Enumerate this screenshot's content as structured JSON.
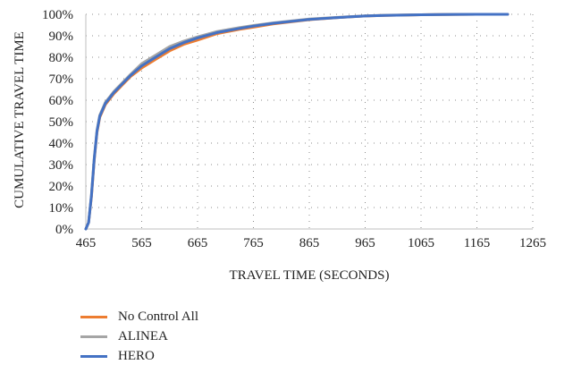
{
  "chart_data": {
    "type": "line",
    "title": "",
    "xlabel": "TRAVEL TIME (SECONDS)",
    "ylabel": "CUMULATIVE TRAVEL TIME",
    "xlim": [
      465,
      1265
    ],
    "ylim": [
      0,
      100
    ],
    "x_ticks": [
      "465",
      "565",
      "665",
      "765",
      "865",
      "965",
      "1065",
      "1165",
      "1265"
    ],
    "y_ticks": [
      "0%",
      "10%",
      "20%",
      "30%",
      "40%",
      "50%",
      "60%",
      "70%",
      "80%",
      "90%",
      "100%"
    ],
    "grid": "dotted",
    "legend_position": "bottom-left",
    "series": [
      {
        "name": "No Control All",
        "color": "#ED7D31",
        "x": [
          465,
          470,
          475,
          480,
          485,
          490,
          500,
          515,
          530,
          545,
          565,
          590,
          615,
          640,
          665,
          700,
          740,
          765,
          800,
          865,
          930,
          965,
          1000,
          1065,
          1100,
          1165,
          1220
        ],
        "y": [
          0,
          3,
          15,
          32,
          45,
          52,
          58,
          63,
          67,
          71,
          75,
          79,
          83,
          86,
          88,
          91,
          93,
          94,
          95.5,
          97.5,
          98.7,
          99.2,
          99.5,
          99.8,
          99.9,
          100,
          100
        ]
      },
      {
        "name": "ALINEA",
        "color": "#A5A5A5",
        "x": [
          465,
          470,
          475,
          480,
          485,
          490,
          500,
          515,
          530,
          545,
          565,
          590,
          615,
          640,
          665,
          700,
          740,
          765,
          800,
          865,
          930,
          965,
          1000,
          1065,
          1100,
          1165,
          1220
        ],
        "y": [
          0,
          3,
          16,
          33,
          46,
          53,
          59,
          64,
          68,
          72,
          77,
          81,
          85,
          87.5,
          89.5,
          92,
          93.8,
          94.8,
          96,
          97.8,
          98.8,
          99.3,
          99.6,
          99.8,
          99.9,
          100,
          100
        ]
      },
      {
        "name": "HERO",
        "color": "#4472C4",
        "x": [
          465,
          470,
          475,
          480,
          485,
          490,
          500,
          515,
          530,
          545,
          565,
          590,
          615,
          640,
          665,
          700,
          740,
          765,
          800,
          865,
          930,
          965,
          1000,
          1065,
          1100,
          1165,
          1220
        ],
        "y": [
          0,
          3,
          15.5,
          32.5,
          45.5,
          52.5,
          58.5,
          63.5,
          67.5,
          71.5,
          76,
          80,
          84,
          86.8,
          89,
          91.5,
          93.4,
          94.5,
          95.8,
          97.6,
          98.7,
          99.2,
          99.5,
          99.8,
          99.9,
          100,
          100
        ]
      }
    ]
  }
}
